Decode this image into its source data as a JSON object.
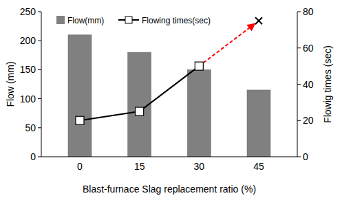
{
  "chart_data": {
    "type": "bar",
    "x_label": "Blast-furnace Slag replacement ratio (%)",
    "y_label": "Flow (mm)",
    "y2_label": "Flowig times (sec)",
    "categories": [
      "0",
      "15",
      "30",
      "45"
    ],
    "series": [
      {
        "name": "Flow(mm)",
        "type": "bar",
        "color": "#808080",
        "values": [
          210,
          180,
          150,
          115
        ]
      },
      {
        "name": "Flowing times(sec)",
        "type": "line",
        "color": "#000000",
        "marker": "square",
        "line_style": "solid",
        "axis": "y2",
        "values": [
          20,
          25,
          50,
          null
        ]
      },
      {
        "type": "line",
        "color": "#ff0000",
        "marker": "x",
        "line_style": "dashed",
        "axis": "y2",
        "values": [
          null,
          null,
          50,
          75
        ]
      }
    ],
    "ylim": [
      0,
      250
    ],
    "yticks": [
      0,
      50,
      100,
      150,
      200,
      250
    ],
    "y2lim": [
      0,
      80
    ],
    "y2ticks": [
      0,
      20,
      40,
      60,
      80
    ],
    "legend": "upper left",
    "grid": false
  }
}
